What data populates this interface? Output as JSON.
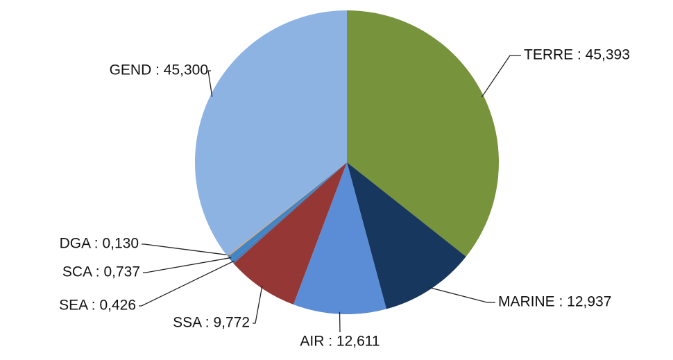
{
  "chart_data": {
    "type": "pie",
    "labels": [
      "TERRE : 45,393",
      "MARINE : 12,937",
      "AIR : 12,611",
      "SSA : 9,772",
      "SEA : 0,426",
      "SCA : 0,737",
      "DGA : 0,130",
      "GEND : 45,300"
    ],
    "values": [
      45.393,
      12.937,
      12.611,
      9.772,
      0.426,
      0.737,
      0.13,
      45.3
    ],
    "colors": [
      "#77933c",
      "#17375e",
      "#5b8dd6",
      "#953735",
      "#4a7ebb",
      "#3f86c6",
      "#f79646",
      "#8db3e2"
    ]
  }
}
